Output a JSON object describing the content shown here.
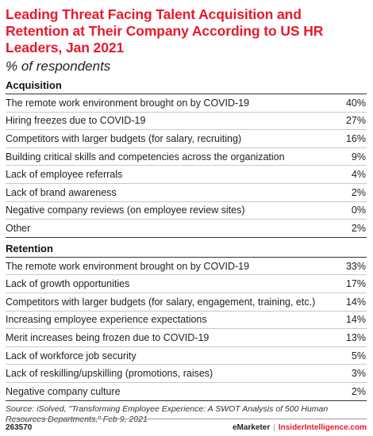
{
  "chart_data": {
    "type": "table",
    "title": "Leading Threat Facing Talent Acquisition and Retention at Their Company According to US HR Leaders, Jan 2021",
    "subtitle": "% of respondents",
    "sections": [
      {
        "name": "Acquisition",
        "rows": [
          {
            "label": "The remote work environment brought on by COVID-19",
            "value": 40,
            "display": "40%"
          },
          {
            "label": "Hiring freezes due to COVID-19",
            "value": 27,
            "display": "27%"
          },
          {
            "label": "Competitors with larger budgets (for salary, recruiting)",
            "value": 16,
            "display": "16%"
          },
          {
            "label": "Building critical skills and competencies across the organization",
            "value": 9,
            "display": "9%"
          },
          {
            "label": "Lack of employee referrals",
            "value": 4,
            "display": "4%"
          },
          {
            "label": "Lack of brand awareness",
            "value": 2,
            "display": "2%"
          },
          {
            "label": "Negative company reviews (on employee review sites)",
            "value": 0,
            "display": "0%"
          },
          {
            "label": "Other",
            "value": 2,
            "display": "2%"
          }
        ]
      },
      {
        "name": "Retention",
        "rows": [
          {
            "label": "The remote work environment brought on by COVID-19",
            "value": 33,
            "display": "33%"
          },
          {
            "label": "Lack of growth opportunities",
            "value": 17,
            "display": "17%"
          },
          {
            "label": "Competitors with larger budgets (for salary, engagement, training, etc.)",
            "value": 14,
            "display": "14%"
          },
          {
            "label": "Increasing employee experience expectations",
            "value": 14,
            "display": "14%"
          },
          {
            "label": "Merit increases being frozen due to COVID-19",
            "value": 13,
            "display": "13%"
          },
          {
            "label": "Lack of workforce job security",
            "value": 5,
            "display": "5%"
          },
          {
            "label": "Lack of reskilling/upskilling (promotions, raises)",
            "value": 3,
            "display": "3%"
          },
          {
            "label": "Negative company culture",
            "value": 2,
            "display": "2%"
          }
        ]
      }
    ],
    "source": "Source: iSolved, \"Transforming Employee Experience: A SWOT Analysis of 500 Human Resources Departments,\" Feb 9, 2021"
  },
  "footer": {
    "chart_id": "263570",
    "brand_left": "eMarketer",
    "brand_sep": "|",
    "brand_right": "InsiderIntelligence.com"
  },
  "colors": {
    "title": "#e8192c",
    "text": "#222222",
    "divider": "#c8c8c8"
  }
}
